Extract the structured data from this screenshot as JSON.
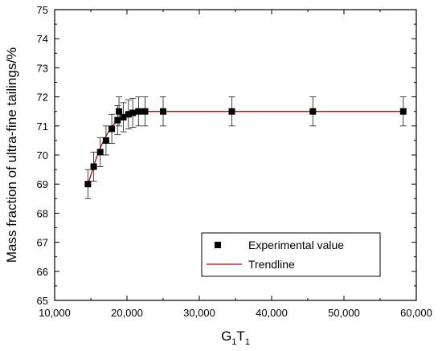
{
  "chart_data": {
    "type": "scatter",
    "title": "",
    "xlabel_main": "G",
    "xlabel_sub1": "1",
    "xlabel_mid": "T",
    "xlabel_sub2": "1",
    "ylabel": "Mass fraction of ultra-fine tailings/%",
    "xlim": [
      10000,
      60000
    ],
    "ylim": [
      65,
      75
    ],
    "x_ticks": [
      "10,000",
      "20,000",
      "30,000",
      "40,000",
      "50,000",
      "60,000"
    ],
    "x_tick_values": [
      10000,
      20000,
      30000,
      40000,
      50000,
      60000
    ],
    "y_ticks": [
      "65",
      "66",
      "67",
      "68",
      "69",
      "70",
      "71",
      "72",
      "73",
      "74",
      "75"
    ],
    "y_tick_values": [
      65,
      66,
      67,
      68,
      69,
      70,
      71,
      72,
      73,
      74,
      75
    ],
    "grid": false,
    "legend_position": "bottom-right",
    "series": [
      {
        "name": "Experimental value",
        "marker": "square",
        "color": "#000000",
        "x": [
          14600,
          15400,
          16300,
          17100,
          17900,
          18700,
          18900,
          19500,
          20200,
          20800,
          21600,
          22500,
          25000,
          34500,
          45700,
          58200
        ],
        "y": [
          69.0,
          69.6,
          70.1,
          70.5,
          70.9,
          71.2,
          71.5,
          71.3,
          71.4,
          71.45,
          71.5,
          71.5,
          71.5,
          71.5,
          71.5,
          71.5
        ],
        "error": [
          0.5,
          0.5,
          0.5,
          0.5,
          0.5,
          0.5,
          0.5,
          0.5,
          0.5,
          0.5,
          0.5,
          0.5,
          0.5,
          0.5,
          0.5,
          0.5
        ]
      },
      {
        "name": "Trendline",
        "type": "line",
        "color": "#c00000",
        "x": [
          14600,
          15000,
          15500,
          16000,
          16500,
          17000,
          17500,
          18000,
          18500,
          19000,
          19500,
          20000,
          20500,
          21000,
          22000,
          23000,
          25000,
          30000,
          40000,
          50000,
          58200
        ],
        "y": [
          69.0,
          69.3,
          69.7,
          70.05,
          70.35,
          70.6,
          70.82,
          71.0,
          71.13,
          71.24,
          71.32,
          71.38,
          71.42,
          71.45,
          71.48,
          71.5,
          71.5,
          71.5,
          71.5,
          71.5,
          71.5
        ]
      }
    ]
  }
}
